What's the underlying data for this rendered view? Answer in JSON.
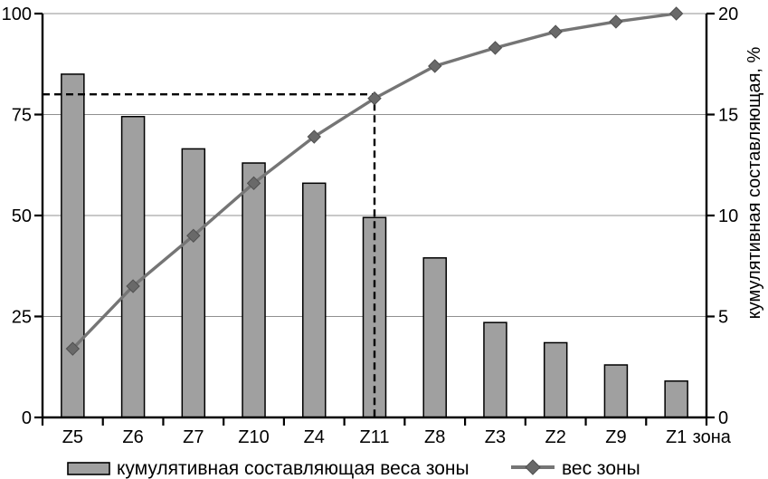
{
  "chart_data": {
    "type": "bar",
    "subtype": "pareto-combo-bar-line",
    "categories": [
      "Z5",
      "Z6",
      "Z7",
      "Z10",
      "Z4",
      "Z11",
      "Z8",
      "Z3",
      "Z2",
      "Z9",
      "Z1"
    ],
    "series": [
      {
        "name": "кумулятивная составляющая веса зоны",
        "type": "bar",
        "axis": "left",
        "values": [
          85,
          74.5,
          66.5,
          63,
          58,
          49.5,
          39.5,
          23.5,
          18.5,
          13,
          9
        ]
      },
      {
        "name": "вес зоны",
        "type": "line",
        "marker": "diamond",
        "axis": "right",
        "values": [
          3.4,
          6.5,
          9.0,
          11.6,
          13.9,
          15.8,
          17.4,
          18.3,
          19.1,
          19.6,
          20.0
        ]
      }
    ],
    "left_axis": {
      "ticks": [
        0,
        25,
        50,
        75,
        100
      ],
      "range": [
        0,
        100
      ],
      "label": ""
    },
    "right_axis": {
      "ticks": [
        0,
        5,
        10,
        15,
        20
      ],
      "range": [
        0,
        20
      ],
      "label": "кумулятивная составляющая, %"
    },
    "x_axis": {
      "unit_label": "зона"
    },
    "guide": {
      "left_value": 80,
      "category": "Z11",
      "style": "dashed"
    },
    "grid": "horizontal-on",
    "legend_position": "bottom",
    "colors": {
      "bar_fill": "#a0a0a0",
      "bar_stroke": "#000000",
      "line": "#757575",
      "marker_fill": "#696969",
      "marker_stroke": "#4f4f4f",
      "grid": "#909090",
      "axis": "#000000",
      "guide": "#000000",
      "text": "#000000",
      "background": "#ffffff"
    }
  }
}
